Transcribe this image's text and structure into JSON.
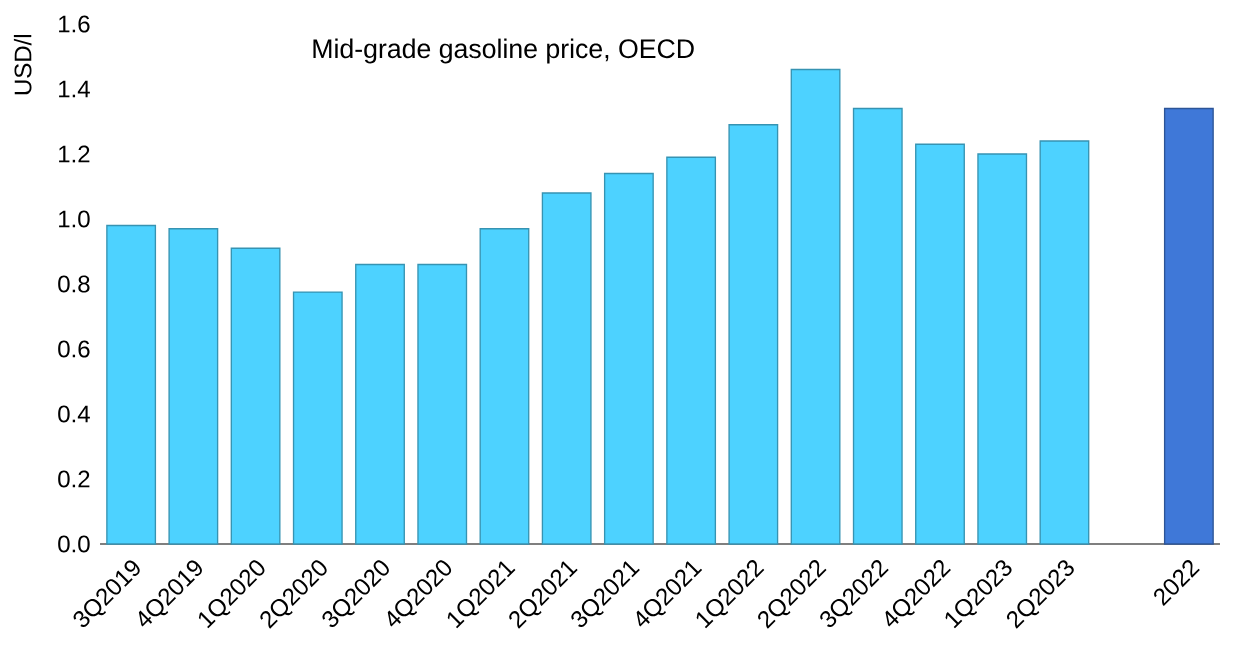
{
  "chart_data": {
    "type": "bar",
    "title": "Mid-grade gasoline price, OECD",
    "ylabel": "USD/l",
    "categories": [
      "3Q2019",
      "4Q2019",
      "1Q2020",
      "2Q2020",
      "3Q2020",
      "4Q2020",
      "1Q2021",
      "2Q2021",
      "3Q2021",
      "4Q2021",
      "1Q2022",
      "2Q2022",
      "3Q2022",
      "4Q2022",
      "1Q2023",
      "2Q2023",
      null,
      "2022"
    ],
    "values": [
      0.98,
      0.97,
      0.91,
      0.775,
      0.86,
      0.86,
      0.97,
      1.08,
      1.14,
      1.19,
      1.29,
      1.46,
      1.34,
      1.23,
      1.2,
      1.24,
      null,
      1.34
    ],
    "colors": [
      "#4dd2ff",
      "#4dd2ff",
      "#4dd2ff",
      "#4dd2ff",
      "#4dd2ff",
      "#4dd2ff",
      "#4dd2ff",
      "#4dd2ff",
      "#4dd2ff",
      "#4dd2ff",
      "#4dd2ff",
      "#4dd2ff",
      "#4dd2ff",
      "#4dd2ff",
      "#4dd2ff",
      "#4dd2ff",
      "#4dd2ff",
      "#3f78d8"
    ],
    "ylim": [
      0,
      1.6
    ],
    "yticks": [
      {
        "value": 0,
        "label": "0.0"
      },
      {
        "value": 0.2,
        "label": "0.2"
      },
      {
        "value": 0.4,
        "label": "0.4"
      },
      {
        "value": 0.6,
        "label": "0.6"
      },
      {
        "value": 0.8,
        "label": "0.8"
      },
      {
        "value": 1.0,
        "label": "1.0"
      },
      {
        "value": 1.2,
        "label": "1.2"
      },
      {
        "value": 1.4,
        "label": "1.4"
      },
      {
        "value": 1.6,
        "label": "1.6"
      }
    ],
    "grid": false
  }
}
